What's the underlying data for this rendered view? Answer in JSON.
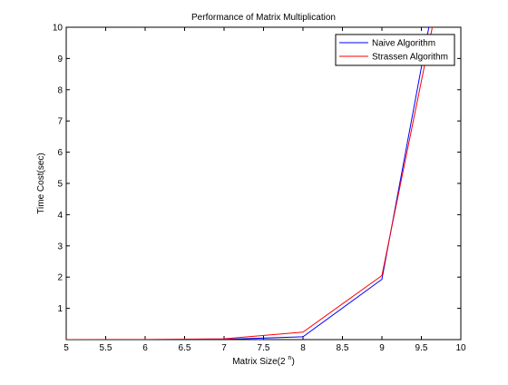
{
  "chart_data": {
    "type": "line",
    "title": "Performance of Matrix Multiplication",
    "xlabel_main": "Matrix Size(2",
    "xlabel_sup": "n",
    "xlabel_close": ")",
    "ylabel": "Time Cost(sec)",
    "xlim": [
      5,
      10
    ],
    "ylim": [
      0,
      10
    ],
    "xticks": [
      5,
      5.5,
      6,
      6.5,
      7,
      7.5,
      8,
      8.5,
      9,
      9.5,
      10
    ],
    "xtick_labels": [
      "5",
      "5.5",
      "6",
      "6.5",
      "7",
      "7.5",
      "8",
      "8.5",
      "9",
      "9.5",
      "10"
    ],
    "yticks": [
      1,
      2,
      3,
      4,
      5,
      6,
      7,
      8,
      9,
      10
    ],
    "ytick_labels": [
      "1",
      "2",
      "3",
      "4",
      "5",
      "6",
      "7",
      "8",
      "9",
      "10"
    ],
    "grid": false,
    "legend_position": "top-right",
    "series": [
      {
        "name": "Naive Algorithm",
        "color": "#0000ff",
        "points": [
          [
            5,
            0.0001
          ],
          [
            6,
            0.0008
          ],
          [
            7,
            0.006
          ],
          [
            8,
            0.09
          ],
          [
            9,
            1.93
          ],
          [
            10,
            15.5
          ]
        ]
      },
      {
        "name": "Strassen Algorithm",
        "color": "#ff0000",
        "points": [
          [
            5,
            0.0004
          ],
          [
            6,
            0.003
          ],
          [
            7,
            0.025
          ],
          [
            8,
            0.24
          ],
          [
            9,
            2.05
          ],
          [
            10,
            14.5
          ]
        ]
      }
    ]
  }
}
